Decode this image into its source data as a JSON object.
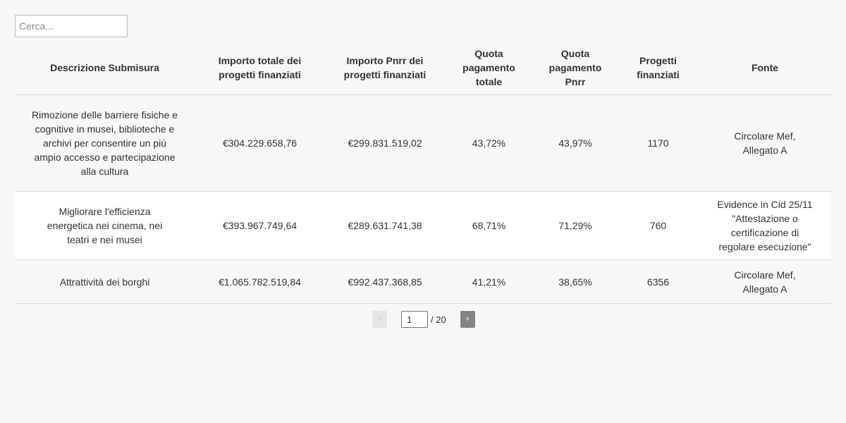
{
  "search": {
    "placeholder": "Cerca..."
  },
  "table": {
    "headers": [
      "Descrizione Submisura",
      "Importo totale dei progetti finanziati",
      "Importo Pnrr dei progetti finanziati",
      "Quota pagamento totale",
      "Quota pagamento Pnrr",
      "Progetti finanziati",
      "Fonte"
    ],
    "rows": [
      {
        "descrizione": "Rimozione delle barriere fisiche e cognitive in musei, biblioteche e archivi per consentire un più ampio accesso e partecipazione alla cultura",
        "importo_totale": "€304.229.658,76",
        "importo_pnrr": "€299.831.519,02",
        "quota_totale": "43,72%",
        "quota_pnrr": "43,97%",
        "progetti": "1170",
        "fonte": "Circolare Mef, Allegato A"
      },
      {
        "descrizione": "Migliorare l'efficienza energetica nei cinema, nei teatri e nei musei",
        "importo_totale": "€393.967.749,64",
        "importo_pnrr": "€289.631.741,38",
        "quota_totale": "68,71%",
        "quota_pnrr": "71,29%",
        "progetti": "760",
        "fonte": "Evidence in Cid 25/11 \"Attestazione o certificazione di regolare esecuzione\""
      },
      {
        "descrizione": "Attrattività dei borghi",
        "importo_totale": "€1.065.782.519,84",
        "importo_pnrr": "€992.437.368,85",
        "quota_totale": "41,21%",
        "quota_pnrr": "38,65%",
        "progetti": "6356",
        "fonte": "Circolare Mef, Allegato A"
      }
    ]
  },
  "pagination": {
    "prev_label": "‹",
    "next_label": "›",
    "current_page": "1",
    "total_label": "/ 20"
  }
}
